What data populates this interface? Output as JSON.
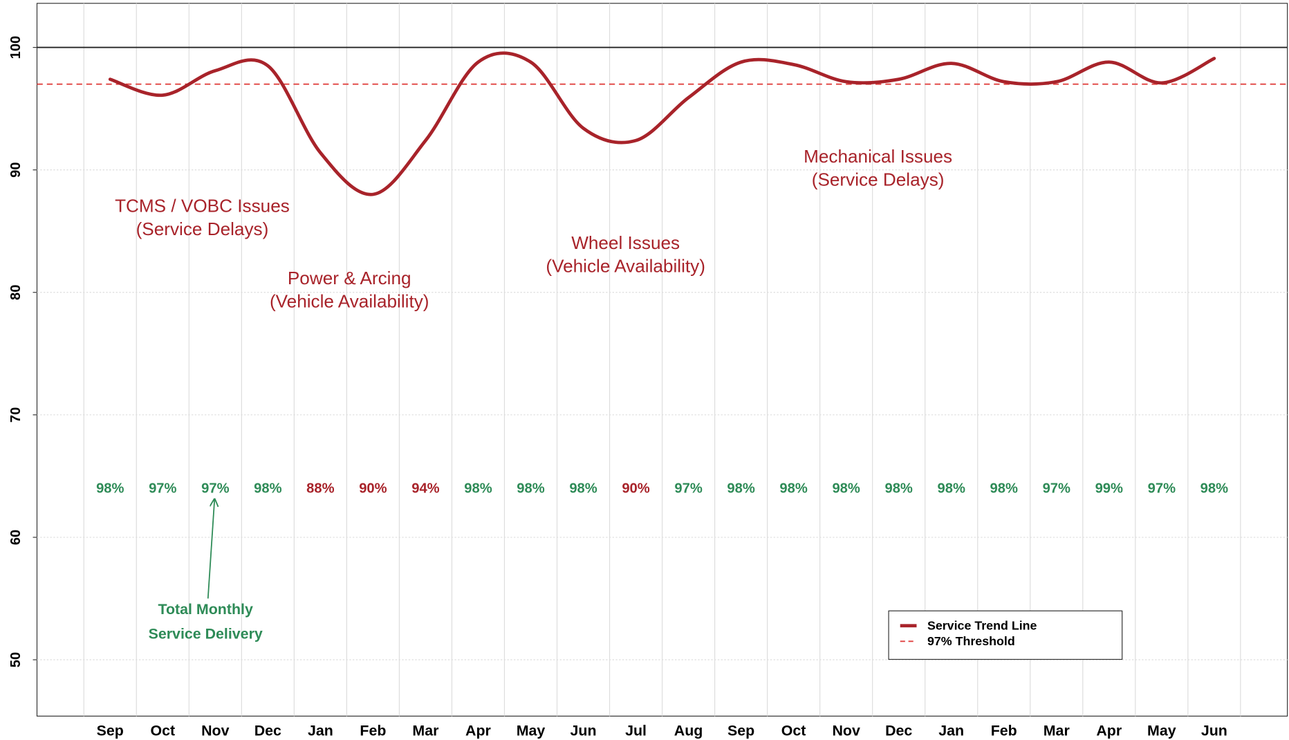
{
  "chart_data": {
    "type": "line",
    "categories": [
      "Sep",
      "Oct",
      "Nov",
      "Dec",
      "Jan",
      "Feb",
      "Mar",
      "Apr",
      "May",
      "Jun",
      "Jul",
      "Aug",
      "Sep",
      "Oct",
      "Nov",
      "Dec",
      "Jan",
      "Feb",
      "Mar",
      "Apr",
      "May",
      "Jun"
    ],
    "series": [
      {
        "name": "Service Trend Line",
        "color": "#a8232a",
        "values": [
          97.4,
          96.1,
          98.1,
          98.5,
          91.4,
          88.0,
          92.4,
          98.8,
          98.8,
          93.4,
          92.4,
          95.9,
          98.8,
          98.6,
          97.2,
          97.4,
          98.7,
          97.2,
          97.2,
          98.8,
          97.1,
          99.1
        ]
      }
    ],
    "ylim": [
      45.4,
      103.6
    ],
    "yticks": [
      50,
      60,
      70,
      80,
      90,
      100
    ],
    "grid": true,
    "reference_line": {
      "value": 100,
      "color": "#222222"
    },
    "threshold": {
      "name": "97% Threshold",
      "value": 97,
      "color": "#e0403f"
    },
    "monthly_delivery": {
      "values": [
        98,
        97,
        97,
        98,
        88,
        90,
        94,
        98,
        98,
        98,
        90,
        97,
        98,
        98,
        98,
        98,
        98,
        98,
        97,
        99,
        97,
        98
      ],
      "value_labels": [
        "98%",
        "97%",
        "97%",
        "98%",
        "88%",
        "90%",
        "94%",
        "98%",
        "98%",
        "98%",
        "90%",
        "97%",
        "98%",
        "98%",
        "98%",
        "98%",
        "98%",
        "98%",
        "97%",
        "99%",
        "97%",
        "98%"
      ],
      "above_color": "#2e8b57",
      "below_color": "#a8232a"
    },
    "annotations": [
      {
        "lines": [
          "TCMS / VOBC Issues",
          "(Service Delays)"
        ]
      },
      {
        "lines": [
          "Power & Arcing",
          "(Vehicle Availability)"
        ]
      },
      {
        "lines": [
          "Wheel Issues",
          "(Vehicle Availability)"
        ]
      },
      {
        "lines": [
          "Mechanical Issues",
          "(Service Delays)"
        ]
      }
    ],
    "callout": {
      "lines": [
        "Total Monthly",
        "Service Delivery"
      ],
      "color": "#2e8b57"
    },
    "legend": "lower right"
  }
}
